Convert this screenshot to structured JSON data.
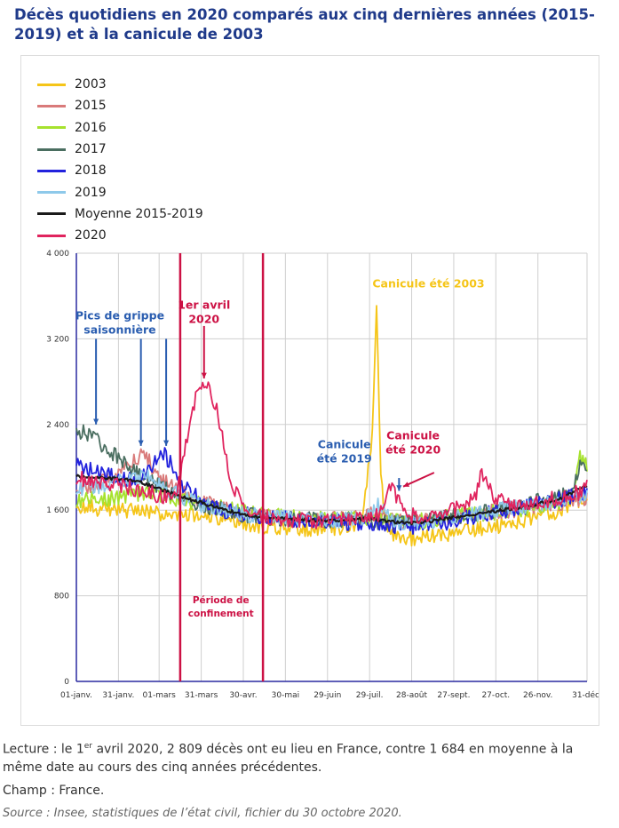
{
  "title": "Décès quotidiens en 2020 comparés aux cinq dernières années (2015-2019) et à la canicule de 2003",
  "colors": {
    "2003": "#f5c518",
    "2015": "#d97a7a",
    "2016": "#a6e22e",
    "2017": "#4a6e60",
    "2018": "#2222dd",
    "2019": "#8ec9ea",
    "moyenne": "#1a1a1a",
    "2020": "#e0245e",
    "annot_blue": "#2a5db0",
    "annot_red": "#cc1144",
    "annot_yellow": "#f5c518"
  },
  "chart_data": {
    "type": "line",
    "ylim": [
      0,
      4000
    ],
    "y_ticks": [
      "0",
      "800",
      "1 600",
      "2 400",
      "3 200",
      "4 000"
    ],
    "y_tick_values": [
      0,
      800,
      1600,
      2400,
      3200,
      4000
    ],
    "x_ticks": [
      "01-janv.",
      "31-janv.",
      "01-mars",
      "31-mars",
      "30-avr.",
      "30-mai",
      "29-juin",
      "29-juil.",
      "28-août",
      "27-sept.",
      "27-oct.",
      "26-nov.",
      "31-déc."
    ],
    "x_tick_days": [
      1,
      31,
      60,
      90,
      120,
      150,
      180,
      210,
      240,
      270,
      300,
      330,
      365
    ],
    "grid": true,
    "legend_placement": "top-left",
    "series": [
      {
        "name": "2003",
        "color_key": "2003",
        "x": [
          1,
          15,
          30,
          45,
          60,
          75,
          90,
          105,
          120,
          135,
          150,
          165,
          180,
          195,
          205,
          212,
          215,
          218,
          220,
          222,
          225,
          230,
          240,
          255,
          270,
          285,
          300,
          315,
          330,
          345,
          360,
          365
        ],
        "values": [
          1650,
          1620,
          1600,
          1590,
          1570,
          1560,
          1540,
          1510,
          1480,
          1450,
          1440,
          1430,
          1430,
          1440,
          1500,
          2300,
          3550,
          2000,
          1550,
          1420,
          1380,
          1360,
          1340,
          1360,
          1380,
          1420,
          1450,
          1500,
          1540,
          1600,
          1700,
          1700
        ]
      },
      {
        "name": "2015",
        "color_key": "2015",
        "x": [
          1,
          10,
          20,
          30,
          40,
          45,
          50,
          55,
          60,
          70,
          80,
          90,
          100,
          110,
          120,
          135,
          150,
          165,
          180,
          195,
          210,
          225,
          240,
          255,
          270,
          285,
          300,
          315,
          330,
          345,
          360,
          365
        ],
        "values": [
          1850,
          1800,
          1880,
          1950,
          2050,
          2100,
          2150,
          2000,
          1900,
          1800,
          1750,
          1700,
          1640,
          1600,
          1560,
          1540,
          1520,
          1500,
          1510,
          1520,
          1560,
          1500,
          1480,
          1500,
          1530,
          1560,
          1590,
          1600,
          1640,
          1670,
          1700,
          1700
        ]
      },
      {
        "name": "2016",
        "color_key": "2016",
        "x": [
          1,
          15,
          30,
          45,
          60,
          75,
          90,
          105,
          120,
          135,
          150,
          165,
          180,
          195,
          210,
          225,
          240,
          255,
          270,
          285,
          300,
          315,
          330,
          345,
          355,
          360,
          365
        ],
        "values": [
          1680,
          1700,
          1720,
          1750,
          1740,
          1700,
          1660,
          1620,
          1580,
          1550,
          1540,
          1520,
          1510,
          1520,
          1530,
          1500,
          1490,
          1510,
          1540,
          1560,
          1580,
          1600,
          1640,
          1680,
          1750,
          2100,
          2000
        ]
      },
      {
        "name": "2017",
        "color_key": "2017",
        "x": [
          1,
          5,
          10,
          15,
          20,
          25,
          30,
          40,
          50,
          60,
          70,
          80,
          90,
          105,
          120,
          135,
          150,
          165,
          180,
          195,
          210,
          225,
          240,
          255,
          270,
          285,
          300,
          315,
          330,
          345,
          355,
          360,
          365
        ],
        "values": [
          2300,
          2350,
          2300,
          2250,
          2200,
          2150,
          2100,
          2000,
          1900,
          1820,
          1760,
          1700,
          1640,
          1600,
          1560,
          1540,
          1520,
          1510,
          1500,
          1510,
          1500,
          1480,
          1490,
          1510,
          1540,
          1570,
          1600,
          1630,
          1680,
          1720,
          1780,
          2050,
          1900
        ]
      },
      {
        "name": "2018",
        "color_key": "2018",
        "x": [
          1,
          15,
          30,
          45,
          55,
          60,
          65,
          70,
          75,
          90,
          105,
          120,
          135,
          150,
          165,
          180,
          195,
          210,
          225,
          240,
          255,
          270,
          285,
          300,
          315,
          330,
          345,
          360,
          365
        ],
        "values": [
          2050,
          1950,
          1900,
          1880,
          2000,
          2150,
          2100,
          2000,
          1850,
          1700,
          1600,
          1560,
          1540,
          1520,
          1500,
          1490,
          1480,
          1470,
          1460,
          1450,
          1470,
          1500,
          1540,
          1580,
          1610,
          1650,
          1700,
          1740,
          1780
        ]
      },
      {
        "name": "2019",
        "color_key": "2019",
        "x": [
          1,
          15,
          30,
          45,
          50,
          55,
          60,
          70,
          80,
          90,
          105,
          120,
          135,
          150,
          165,
          180,
          195,
          210,
          215,
          220,
          225,
          240,
          255,
          270,
          285,
          300,
          315,
          330,
          345,
          360,
          365
        ],
        "values": [
          1800,
          1820,
          1850,
          1900,
          1920,
          1880,
          1830,
          1760,
          1700,
          1650,
          1600,
          1560,
          1540,
          1530,
          1520,
          1500,
          1510,
          1540,
          1650,
          1580,
          1500,
          1490,
          1500,
          1530,
          1560,
          1600,
          1620,
          1660,
          1700,
          1740,
          1760
        ]
      },
      {
        "name": "Moyenne 2015-2019",
        "color_key": "moyenne",
        "x": [
          1,
          15,
          30,
          45,
          60,
          75,
          90,
          105,
          120,
          135,
          150,
          165,
          180,
          195,
          210,
          225,
          240,
          255,
          270,
          285,
          300,
          315,
          330,
          345,
          360,
          365
        ],
        "values": [
          1920,
          1900,
          1890,
          1870,
          1800,
          1730,
          1670,
          1610,
          1560,
          1530,
          1520,
          1510,
          1500,
          1510,
          1520,
          1490,
          1480,
          1500,
          1530,
          1560,
          1590,
          1620,
          1660,
          1700,
          1800,
          1840
        ]
      },
      {
        "name": "2020",
        "color_key": "2020",
        "x": [
          1,
          15,
          30,
          45,
          60,
          70,
          75,
          80,
          85,
          88,
          91,
          95,
          100,
          105,
          110,
          115,
          120,
          125,
          135,
          150,
          165,
          180,
          195,
          210,
          215,
          220,
          225,
          230,
          240,
          255,
          270,
          285,
          290,
          300,
          315,
          330,
          345,
          360,
          365
        ],
        "values": [
          1900,
          1870,
          1830,
          1790,
          1740,
          1680,
          1900,
          2300,
          2600,
          2760,
          2809,
          2720,
          2600,
          2300,
          1950,
          1750,
          1640,
          1580,
          1540,
          1520,
          1500,
          1500,
          1510,
          1520,
          1560,
          1600,
          1850,
          1700,
          1550,
          1530,
          1600,
          1700,
          1950,
          1700,
          1650,
          1680,
          1720,
          1770,
          1850
        ]
      }
    ],
    "vlines": [
      {
        "x": 75,
        "color_key": "annot_red"
      },
      {
        "x": 134,
        "color_key": "annot_red"
      }
    ],
    "annotations": [
      {
        "key": "grippe",
        "lines": [
          "Pics de grippe",
          "saisonnière"
        ],
        "color_key": "annot_blue",
        "x": 32,
        "y": 3380
      },
      {
        "key": "avril",
        "lines": [
          "1er avril",
          "2020"
        ],
        "color_key": "annot_red",
        "x": 92,
        "y": 3480
      },
      {
        "key": "c2003",
        "lines": [
          "Canicule été 2003"
        ],
        "color_key": "annot_yellow",
        "x": 252,
        "y": 3680
      },
      {
        "key": "c2019",
        "lines": [
          "Canicule",
          "été 2019"
        ],
        "color_key": "annot_blue",
        "x": 192,
        "y": 2180
      },
      {
        "key": "c2020",
        "lines": [
          "Canicule",
          "été 2020"
        ],
        "color_key": "annot_red",
        "x": 241,
        "y": 2260
      },
      {
        "key": "confinement",
        "lines": [
          "Période de",
          "confinement"
        ],
        "color_key": "annot_red",
        "x": 104,
        "y": 730
      }
    ],
    "arrows": [
      {
        "color_key": "annot_blue",
        "from": [
          15,
          3200
        ],
        "to": [
          15,
          2400
        ]
      },
      {
        "color_key": "annot_blue",
        "from": [
          47,
          3200
        ],
        "to": [
          47,
          2200
        ]
      },
      {
        "color_key": "annot_blue",
        "from": [
          65,
          3200
        ],
        "to": [
          65,
          2200
        ]
      },
      {
        "color_key": "annot_red",
        "from": [
          92,
          3320
        ],
        "to": [
          92,
          2830
        ]
      },
      {
        "color_key": "annot_blue",
        "from": [
          231,
          1900
        ],
        "to": [
          231,
          1780
        ]
      },
      {
        "color_key": "annot_red",
        "from": [
          256,
          1950
        ],
        "to": [
          234,
          1820
        ]
      }
    ]
  },
  "footer": {
    "lecture_a": "Lecture : le 1",
    "lecture_sup": "er",
    "lecture_b": " avril 2020, 2 809 décès ont eu lieu en France, contre 1 684 en moyenne à la même date au cours des cinq années précédentes.",
    "champ": "Champ : France.",
    "source": "Source : Insee, statistiques de l’état civil, fichier du 30 octobre 2020."
  }
}
